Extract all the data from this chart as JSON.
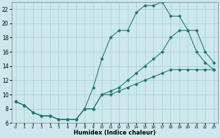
{
  "xlabel": "Humidex (Indice chaleur)",
  "background_color": "#cce8ec",
  "line_color": "#1a7a6e",
  "grid_color": "#aacccc",
  "xlim": [
    -0.5,
    23.5
  ],
  "ylim": [
    6,
    23
  ],
  "xticks": [
    0,
    1,
    2,
    3,
    4,
    5,
    6,
    7,
    8,
    9,
    10,
    11,
    12,
    13,
    14,
    15,
    16,
    17,
    18,
    19,
    20,
    21,
    22,
    23
  ],
  "yticks": [
    6,
    8,
    10,
    12,
    14,
    16,
    18,
    20,
    22
  ],
  "curve1_x": [
    0,
    1,
    2,
    3,
    4,
    5,
    6,
    7,
    8,
    9,
    10,
    11,
    12,
    13,
    14,
    15,
    16,
    17,
    18,
    19,
    20,
    21,
    22,
    23
  ],
  "curve1_y": [
    9,
    8.5,
    7.5,
    7,
    7,
    6.5,
    6.5,
    6.5,
    8,
    11,
    15,
    18,
    19,
    19,
    21.5,
    22.5,
    22.5,
    23,
    21,
    21,
    19,
    16,
    14.5,
    13.5
  ],
  "curve2_x": [
    0,
    1,
    2,
    3,
    4,
    5,
    6,
    7,
    8,
    9,
    10,
    11,
    12,
    13,
    14,
    15,
    16,
    17,
    18,
    19,
    20,
    21,
    22,
    23
  ],
  "curve2_y": [
    9,
    8.5,
    7.5,
    7,
    7,
    6.5,
    6.5,
    6.5,
    8,
    8,
    10,
    10.5,
    11,
    12,
    13,
    14,
    15,
    16,
    18,
    19,
    19,
    19,
    16,
    14.5
  ],
  "curve3_x": [
    0,
    1,
    2,
    3,
    4,
    5,
    6,
    7,
    8,
    9,
    10,
    11,
    12,
    13,
    14,
    15,
    16,
    17,
    18,
    19,
    20,
    21,
    22,
    23
  ],
  "curve3_y": [
    9,
    8.5,
    7.5,
    7,
    7,
    6.5,
    6.5,
    6.5,
    8,
    8,
    10,
    10,
    10.5,
    11,
    11.5,
    12,
    12.5,
    13,
    13.5,
    13.5,
    13.5,
    13.5,
    13.5,
    13.5
  ]
}
